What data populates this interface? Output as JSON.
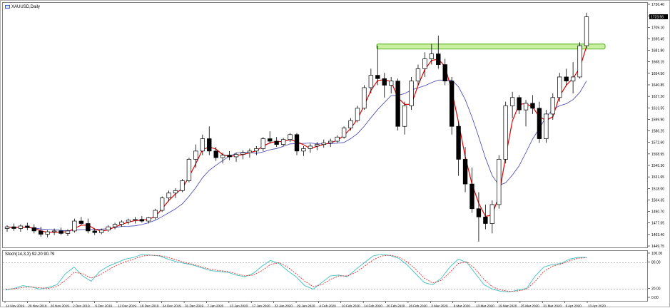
{
  "window": {
    "title": "XAUUSD,Daily"
  },
  "oscillator": {
    "label": "Stoch(14,3,3) 92.20 90.79"
  },
  "price_axis": {
    "ticks": [
      "1736.40",
      "1722.75",
      "1709.10",
      "1695.45",
      "1681.80",
      "1668.15",
      "1654.50",
      "1640.85",
      "1627.20",
      "1613.55",
      "1599.90",
      "1586.25",
      "1572.60",
      "1558.95",
      "1545.30",
      "1531.65",
      "1518.00",
      "1504.35",
      "1490.70",
      "1477.05",
      "1463.40",
      "1449.75"
    ],
    "current_label": "1723.56"
  },
  "osc_axis": {
    "ticks": [
      "100.00",
      "80.00",
      "20.00",
      "0.00"
    ]
  },
  "date_axis": {
    "labels": [
      "14 Nov 2019",
      "20 Nov 2019",
      "26 Nov 2019",
      "2 Dec 2019",
      "6 Dec 2019",
      "12 Dec 2019",
      "18 Dec 2019",
      "24 Dec 2019",
      "31 Dec 2019",
      "7 Jan 2020",
      "13 Jan 2020",
      "17 Jan 2020",
      "23 Jan 2020",
      "29 Jan 2020",
      "4 Feb 2020",
      "10 Feb 2020",
      "14 Feb 2020",
      "20 Feb 2020",
      "26 Feb 2020",
      "3 Mar 2020",
      "9 Mar 2020",
      "13 Mar 2020",
      "19 Mar 2020",
      "25 Mar 2020",
      "31 Mar 2020",
      "6 Apr 2020",
      "13 Apr 2020"
    ]
  },
  "colors": {
    "fast_ma": "#e00000",
    "slow_ma": "#4040b0",
    "zone_fill": "#c8f0a0",
    "zone_border": "#6cbf3a",
    "stoch_main": "#40c0c0",
    "stoch_signal": "#e03030"
  },
  "chart_data": {
    "type": "candlestick",
    "ylim": [
      1443,
      1740
    ],
    "resistance_zone": [
      1684,
      1690
    ],
    "candles": [
      [
        1466,
        1470,
        1462,
        1468
      ],
      [
        1468,
        1472,
        1463,
        1466
      ],
      [
        1466,
        1471,
        1462,
        1469
      ],
      [
        1469,
        1473,
        1464,
        1467
      ],
      [
        1467,
        1471,
        1460,
        1463
      ],
      [
        1463,
        1468,
        1456,
        1459
      ],
      [
        1459,
        1464,
        1455,
        1462
      ],
      [
        1462,
        1466,
        1458,
        1463
      ],
      [
        1463,
        1467,
        1458,
        1460
      ],
      [
        1460,
        1465,
        1457,
        1463
      ],
      [
        1463,
        1478,
        1461,
        1475
      ],
      [
        1475,
        1480,
        1470,
        1472
      ],
      [
        1472,
        1478,
        1460,
        1463
      ],
      [
        1463,
        1466,
        1458,
        1461
      ],
      [
        1461,
        1466,
        1459,
        1464
      ],
      [
        1464,
        1470,
        1462,
        1468
      ],
      [
        1468,
        1473,
        1465,
        1471
      ],
      [
        1471,
        1476,
        1468,
        1474
      ],
      [
        1474,
        1478,
        1471,
        1476
      ],
      [
        1476,
        1480,
        1472,
        1477
      ],
      [
        1477,
        1481,
        1473,
        1475
      ],
      [
        1475,
        1480,
        1472,
        1479
      ],
      [
        1479,
        1490,
        1477,
        1488
      ],
      [
        1488,
        1505,
        1486,
        1503
      ],
      [
        1503,
        1512,
        1499,
        1509
      ],
      [
        1509,
        1515,
        1503,
        1512
      ],
      [
        1512,
        1526,
        1510,
        1524
      ],
      [
        1524,
        1552,
        1522,
        1550
      ],
      [
        1550,
        1568,
        1540,
        1560
      ],
      [
        1560,
        1580,
        1555,
        1575
      ],
      [
        1575,
        1590,
        1555,
        1560
      ],
      [
        1560,
        1565,
        1548,
        1552
      ],
      [
        1552,
        1558,
        1545,
        1555
      ],
      [
        1555,
        1560,
        1549,
        1553
      ],
      [
        1553,
        1558,
        1547,
        1556
      ],
      [
        1556,
        1561,
        1550,
        1558
      ],
      [
        1558,
        1563,
        1552,
        1560
      ],
      [
        1560,
        1566,
        1555,
        1563
      ],
      [
        1563,
        1577,
        1560,
        1575
      ],
      [
        1575,
        1584,
        1569,
        1572
      ],
      [
        1572,
        1577,
        1565,
        1568
      ],
      [
        1568,
        1576,
        1566,
        1574
      ],
      [
        1574,
        1582,
        1571,
        1580
      ],
      [
        1580,
        1582,
        1555,
        1560
      ],
      [
        1560,
        1566,
        1554,
        1563
      ],
      [
        1563,
        1569,
        1558,
        1566
      ],
      [
        1566,
        1571,
        1561,
        1568
      ],
      [
        1568,
        1574,
        1564,
        1570
      ],
      [
        1570,
        1575,
        1565,
        1572
      ],
      [
        1572,
        1579,
        1570,
        1577
      ],
      [
        1577,
        1590,
        1575,
        1588
      ],
      [
        1588,
        1600,
        1585,
        1597
      ],
      [
        1597,
        1615,
        1595,
        1612
      ],
      [
        1612,
        1640,
        1610,
        1637
      ],
      [
        1637,
        1660,
        1630,
        1652
      ],
      [
        1652,
        1688,
        1640,
        1648
      ],
      [
        1648,
        1655,
        1625,
        1640
      ],
      [
        1640,
        1650,
        1630,
        1645
      ],
      [
        1645,
        1648,
        1585,
        1590
      ],
      [
        1590,
        1620,
        1580,
        1615
      ],
      [
        1615,
        1650,
        1610,
        1645
      ],
      [
        1645,
        1665,
        1640,
        1660
      ],
      [
        1660,
        1680,
        1650,
        1672
      ],
      [
        1672,
        1690,
        1665,
        1678
      ],
      [
        1678,
        1700,
        1660,
        1665
      ],
      [
        1665,
        1672,
        1640,
        1645
      ],
      [
        1645,
        1650,
        1580,
        1590
      ],
      [
        1590,
        1595,
        1530,
        1550
      ],
      [
        1550,
        1565,
        1510,
        1520
      ],
      [
        1520,
        1540,
        1485,
        1490
      ],
      [
        1490,
        1510,
        1450,
        1480
      ],
      [
        1480,
        1495,
        1465,
        1472
      ],
      [
        1472,
        1500,
        1460,
        1495
      ],
      [
        1495,
        1555,
        1490,
        1550
      ],
      [
        1550,
        1620,
        1545,
        1615
      ],
      [
        1615,
        1632,
        1600,
        1625
      ],
      [
        1625,
        1628,
        1605,
        1610
      ],
      [
        1610,
        1622,
        1590,
        1618
      ],
      [
        1618,
        1628,
        1605,
        1612
      ],
      [
        1612,
        1620,
        1570,
        1575
      ],
      [
        1575,
        1610,
        1570,
        1605
      ],
      [
        1605,
        1630,
        1598,
        1625
      ],
      [
        1625,
        1655,
        1620,
        1650
      ],
      [
        1650,
        1660,
        1640,
        1645
      ],
      [
        1645,
        1668,
        1630,
        1650
      ],
      [
        1650,
        1692,
        1648,
        1688
      ],
      [
        1688,
        1728,
        1685,
        1723
      ]
    ],
    "stochastic": {
      "main": [
        18,
        22,
        28,
        25,
        20,
        24,
        30,
        55,
        70,
        50,
        38,
        60,
        72,
        80,
        88,
        92,
        99,
        97,
        95,
        88,
        82,
        78,
        74,
        68,
        62,
        60,
        58,
        52,
        48,
        56,
        72,
        85,
        78,
        62,
        48,
        28,
        20,
        35,
        50,
        52,
        48,
        65,
        80,
        95,
        99,
        96,
        90,
        75,
        55,
        35,
        30,
        45,
        70,
        88,
        80,
        55,
        30,
        20,
        15,
        14,
        18,
        22,
        50,
        70,
        76,
        78,
        88,
        92,
        92
      ],
      "signal": [
        20,
        21,
        24,
        25,
        23,
        22,
        26,
        40,
        58,
        55,
        45,
        52,
        64,
        74,
        82,
        88,
        95,
        97,
        96,
        92,
        86,
        80,
        76,
        70,
        65,
        62,
        60,
        55,
        50,
        52,
        62,
        76,
        80,
        70,
        55,
        38,
        26,
        30,
        42,
        50,
        50,
        58,
        72,
        86,
        95,
        97,
        93,
        82,
        65,
        45,
        34,
        40,
        58,
        78,
        82,
        65,
        42,
        25,
        18,
        15,
        16,
        20,
        38,
        60,
        72,
        77,
        84,
        90,
        91
      ]
    }
  }
}
